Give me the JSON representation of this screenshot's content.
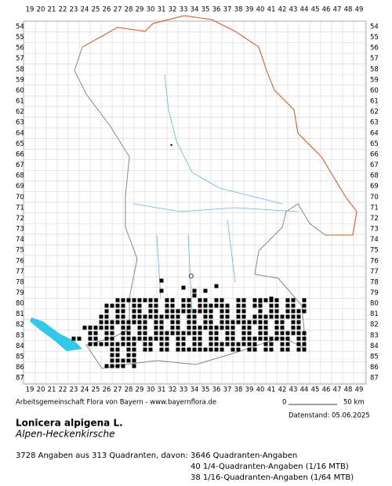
{
  "map": {
    "columns": [
      19,
      20,
      21,
      22,
      23,
      24,
      25,
      26,
      27,
      28,
      29,
      30,
      31,
      32,
      33,
      34,
      35,
      36,
      37,
      38,
      39,
      40,
      41,
      42,
      43,
      44,
      45,
      46,
      47,
      48,
      49
    ],
    "rows": [
      54,
      55,
      56,
      57,
      58,
      59,
      60,
      61,
      62,
      63,
      64,
      65,
      66,
      67,
      68,
      69,
      70,
      71,
      72,
      73,
      74,
      75,
      76,
      77,
      78,
      79,
      80,
      81,
      82,
      83,
      84,
      85,
      86,
      87
    ],
    "credit": "Arbeitsgemeinschaft Flora von Bayern - www.bayernflora.de",
    "scale_start": "0",
    "scale_end": "50 km",
    "date": "Datenstand: 05.06.2025"
  },
  "species": {
    "name": "Lonicera alpigena L.",
    "common_name": "Alpen-Heckenkirsche"
  },
  "summary": {
    "total": "3728 Angaben aus 313 Quadranten, davon:",
    "details": [
      "3646 Quadranten-Angaben",
      "40 1/4-Quadranten-Angaben (1/16 MTB)",
      "38 1/16-Quadranten-Angaben (1/64 MTB)"
    ]
  }
}
